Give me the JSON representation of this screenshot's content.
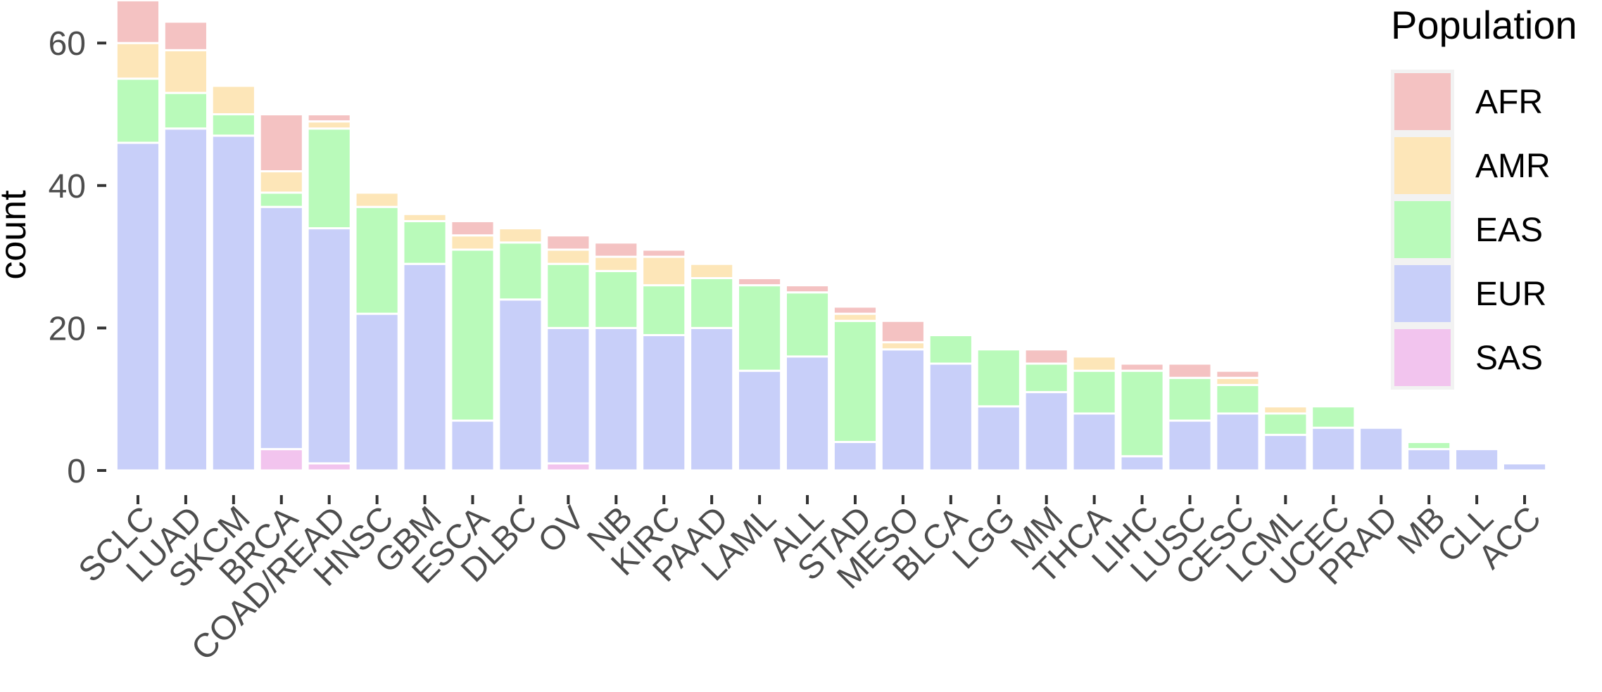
{
  "chart_data": {
    "type": "bar",
    "stacked": true,
    "ylabel": "count",
    "ylim": [
      0,
      66
    ],
    "y_ticks": [
      "0",
      "20",
      "40",
      "60"
    ],
    "legend": {
      "title": "Population",
      "placement": "right"
    },
    "colors": {
      "AFR": "#F4C2C2",
      "AMR": "#FDE6B8",
      "EAS": "#B9FABA",
      "EUR": "#C8CFF9",
      "SAS": "#F2C4EE"
    },
    "categories": [
      "SCLC",
      "LUAD",
      "SKCM",
      "BRCA",
      "COAD/READ",
      "HNSC",
      "GBM",
      "ESCA",
      "DLBC",
      "OV",
      "NB",
      "KIRC",
      "PAAD",
      "LAML",
      "ALL",
      "STAD",
      "MESO",
      "BLCA",
      "LGG",
      "MM",
      "THCA",
      "LIHC",
      "LUSC",
      "CESC",
      "LCML",
      "UCEC",
      "PRAD",
      "MB",
      "CLL",
      "ACC"
    ],
    "series": [
      {
        "name": "SAS",
        "values": [
          0,
          0,
          0,
          3,
          1,
          0,
          0,
          0,
          0,
          1,
          0,
          0,
          0,
          0,
          0,
          0,
          0,
          0,
          0,
          0,
          0,
          0,
          0,
          0,
          0,
          0,
          0,
          0,
          0,
          0
        ]
      },
      {
        "name": "EUR",
        "values": [
          46,
          48,
          47,
          34,
          33,
          22,
          29,
          7,
          24,
          19,
          20,
          19,
          20,
          14,
          16,
          4,
          17,
          15,
          9,
          11,
          8,
          2,
          7,
          8,
          5,
          6,
          6,
          3,
          3,
          1
        ]
      },
      {
        "name": "EAS",
        "values": [
          9,
          5,
          3,
          2,
          14,
          15,
          6,
          24,
          8,
          9,
          8,
          7,
          7,
          12,
          9,
          17,
          0,
          4,
          8,
          4,
          6,
          12,
          6,
          4,
          3,
          3,
          0,
          1,
          0,
          0
        ]
      },
      {
        "name": "AMR",
        "values": [
          5,
          6,
          4,
          3,
          1,
          2,
          1,
          2,
          2,
          2,
          2,
          4,
          2,
          0,
          0,
          1,
          1,
          0,
          0,
          0,
          2,
          0,
          0,
          1,
          1,
          0,
          0,
          0,
          0,
          0
        ]
      },
      {
        "name": "AFR",
        "values": [
          6,
          4,
          0,
          8,
          1,
          0,
          0,
          2,
          0,
          2,
          2,
          1,
          0,
          1,
          1,
          1,
          3,
          0,
          0,
          2,
          0,
          1,
          2,
          1,
          0,
          0,
          0,
          0,
          0,
          0
        ]
      }
    ]
  }
}
